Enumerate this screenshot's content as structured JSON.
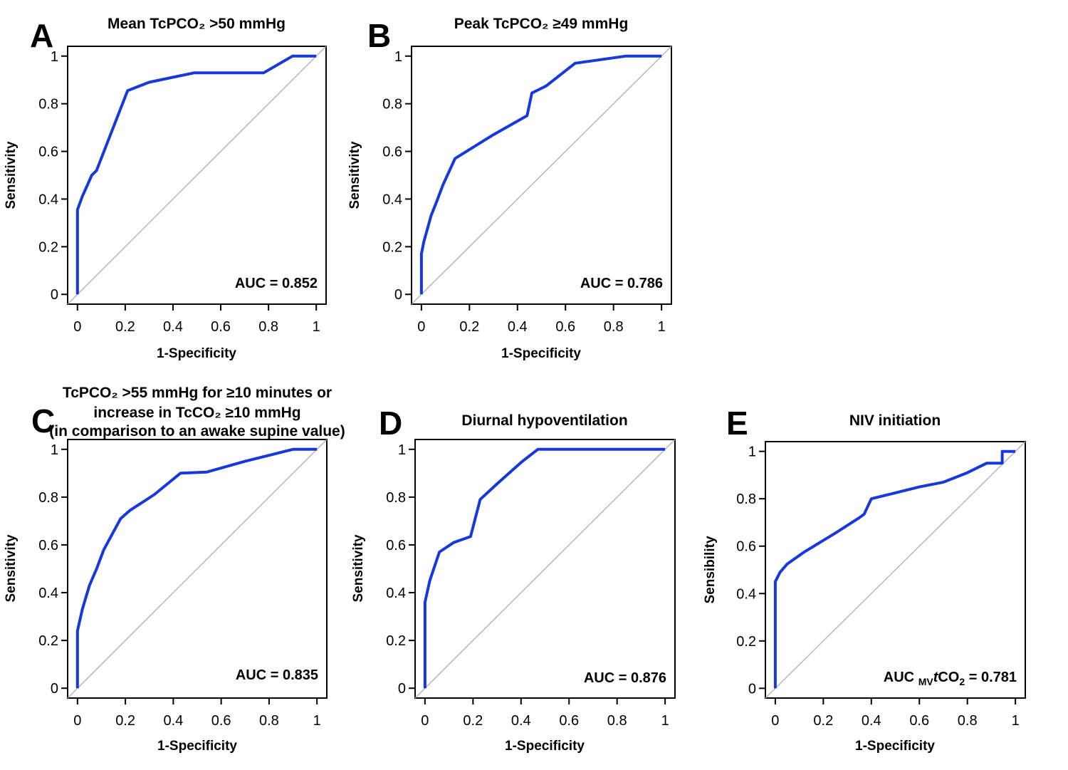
{
  "figure": {
    "background": "#ffffff",
    "curve_color": "#1638dc",
    "diagonal_color": "#b3b3b3",
    "text_color": "#000000",
    "description_labels": [
      "A",
      "B",
      "C",
      "D",
      "E"
    ]
  },
  "chart_data": [
    {
      "panel": "A",
      "letter": "A",
      "type": "line",
      "title_lines": [
        "Mean TcPCO₂ >50 mmHg"
      ],
      "xlabel": "1-Specificity",
      "ylabel": "Sensitivity",
      "xlim": [
        0,
        1
      ],
      "ylim": [
        0,
        1
      ],
      "grid": false,
      "xticks": [
        "0",
        "0.2",
        "0.4",
        "0.6",
        "0.8",
        "1"
      ],
      "yticks": [
        "0",
        "0.2",
        "0.4",
        "0.6",
        "0.8",
        "1"
      ],
      "auc_value": 0.852,
      "auc_text": "AUC = 0.852",
      "diagonal": {
        "from": [
          0,
          0
        ],
        "to": [
          1,
          1
        ]
      },
      "roc_points": [
        [
          0,
          0
        ],
        [
          0,
          0.355
        ],
        [
          0.02,
          0.41
        ],
        [
          0.06,
          0.5
        ],
        [
          0.08,
          0.52
        ],
        [
          0.21,
          0.855
        ],
        [
          0.3,
          0.89
        ],
        [
          0.49,
          0.93
        ],
        [
          0.78,
          0.93
        ],
        [
          0.9,
          1
        ],
        [
          1,
          1
        ]
      ]
    },
    {
      "panel": "B",
      "letter": "B",
      "type": "line",
      "title_lines": [
        "Peak TcPCO₂ ≥49 mmHg"
      ],
      "xlabel": "1-Specificity",
      "ylabel": "Sensitivity",
      "xlim": [
        0,
        1
      ],
      "ylim": [
        0,
        1
      ],
      "grid": false,
      "xticks": [
        "0",
        "0.2",
        "0.4",
        "0.6",
        "0.8",
        "1"
      ],
      "yticks": [
        "0",
        "0.2",
        "0.4",
        "0.6",
        "0.8",
        "1"
      ],
      "auc_value": 0.786,
      "auc_text": "AUC = 0.786",
      "diagonal": {
        "from": [
          0,
          0
        ],
        "to": [
          1,
          1
        ]
      },
      "roc_points": [
        [
          0,
          0
        ],
        [
          0,
          0.17
        ],
        [
          0.01,
          0.22
        ],
        [
          0.04,
          0.33
        ],
        [
          0.06,
          0.38
        ],
        [
          0.09,
          0.46
        ],
        [
          0.14,
          0.57
        ],
        [
          0.3,
          0.67
        ],
        [
          0.44,
          0.75
        ],
        [
          0.46,
          0.845
        ],
        [
          0.52,
          0.875
        ],
        [
          0.64,
          0.97
        ],
        [
          0.85,
          1
        ],
        [
          1,
          1
        ]
      ]
    },
    {
      "panel": "C",
      "letter": "C",
      "type": "line",
      "title_lines": [
        "TcPCO₂ >55 mmHg for ≥10 minutes or",
        "increase in TcCO₂ ≥10 mmHg",
        "(in comparison to an awake supine value)"
      ],
      "xlabel": "1-Specificity",
      "ylabel": "Sensitivity",
      "xlim": [
        0,
        1
      ],
      "ylim": [
        0,
        1
      ],
      "grid": false,
      "xticks": [
        "0",
        "0.2",
        "0.4",
        "0.6",
        "0.8",
        "1"
      ],
      "yticks": [
        "0",
        "0.2",
        "0.4",
        "0.6",
        "0.8",
        "1"
      ],
      "auc_value": 0.835,
      "auc_text": "AUC = 0.835",
      "diagonal": {
        "from": [
          0,
          0
        ],
        "to": [
          1,
          1
        ]
      },
      "roc_points": [
        [
          0,
          0
        ],
        [
          0,
          0.24
        ],
        [
          0.02,
          0.33
        ],
        [
          0.05,
          0.43
        ],
        [
          0.08,
          0.5
        ],
        [
          0.11,
          0.58
        ],
        [
          0.18,
          0.71
        ],
        [
          0.22,
          0.745
        ],
        [
          0.32,
          0.81
        ],
        [
          0.43,
          0.9
        ],
        [
          0.54,
          0.905
        ],
        [
          0.7,
          0.95
        ],
        [
          0.9,
          1
        ],
        [
          1,
          1
        ]
      ]
    },
    {
      "panel": "D",
      "letter": "D",
      "type": "line",
      "title_lines": [
        "Diurnal hypoventilation"
      ],
      "xlabel": "1-Specificity",
      "ylabel": "Sensitivity",
      "xlim": [
        0,
        1
      ],
      "ylim": [
        0,
        1
      ],
      "grid": false,
      "xticks": [
        "0",
        "0.2",
        "0.4",
        "0.6",
        "0.8",
        "1"
      ],
      "yticks": [
        "0",
        "0.2",
        "0.4",
        "0.6",
        "0.8",
        "1"
      ],
      "auc_value": 0.876,
      "auc_text": "AUC = 0.876",
      "diagonal": {
        "from": [
          0,
          0
        ],
        "to": [
          1,
          1
        ]
      },
      "roc_points": [
        [
          0,
          0
        ],
        [
          0,
          0.36
        ],
        [
          0.02,
          0.45
        ],
        [
          0.06,
          0.57
        ],
        [
          0.12,
          0.61
        ],
        [
          0.19,
          0.635
        ],
        [
          0.23,
          0.79
        ],
        [
          0.3,
          0.855
        ],
        [
          0.4,
          0.945
        ],
        [
          0.47,
          1
        ],
        [
          1,
          1
        ]
      ]
    },
    {
      "panel": "E",
      "letter": "E",
      "type": "line",
      "title_lines": [
        "NIV initiation"
      ],
      "xlabel": "1-Specificity",
      "ylabel": "Sensibility",
      "xlim": [
        0,
        1
      ],
      "ylim": [
        0,
        1
      ],
      "grid": false,
      "xticks": [
        "0",
        "0.2",
        "0.4",
        "0.6",
        "0.8",
        "1"
      ],
      "yticks": [
        "0",
        "0.2",
        "0.4",
        "0.6",
        "0.8",
        "1"
      ],
      "auc_value": 0.781,
      "auc_parts": [
        "AUC ",
        "MV",
        "t",
        "CO",
        "2",
        " = 0.781"
      ],
      "diagonal": {
        "from": [
          0,
          0
        ],
        "to": [
          1,
          1
        ]
      },
      "roc_points": [
        [
          0,
          0
        ],
        [
          0,
          0.45
        ],
        [
          0.02,
          0.49
        ],
        [
          0.05,
          0.525
        ],
        [
          0.12,
          0.575
        ],
        [
          0.25,
          0.655
        ],
        [
          0.35,
          0.72
        ],
        [
          0.37,
          0.735
        ],
        [
          0.4,
          0.8
        ],
        [
          0.5,
          0.825
        ],
        [
          0.6,
          0.85
        ],
        [
          0.7,
          0.87
        ],
        [
          0.8,
          0.91
        ],
        [
          0.88,
          0.95
        ],
        [
          0.945,
          0.95
        ],
        [
          0.945,
          1
        ],
        [
          1,
          1
        ]
      ]
    }
  ]
}
